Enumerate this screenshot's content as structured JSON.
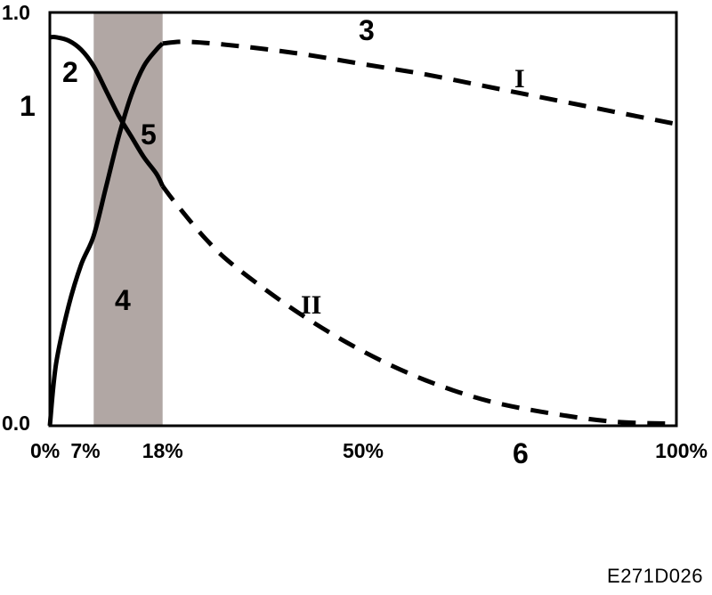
{
  "chart_data": {
    "type": "line",
    "x_ticks": [
      "0%",
      "7%",
      "18%",
      "50%",
      "100%"
    ],
    "x_tick_values": [
      0,
      7,
      18,
      50,
      100
    ],
    "y_ticks": [
      "0.0",
      "1.0"
    ],
    "y_tick_values": [
      0.0,
      1.0
    ],
    "xlim": [
      0,
      100
    ],
    "ylim": [
      0,
      1
    ],
    "grid": false,
    "shaded_band": {
      "x_start": 7,
      "x_end": 18,
      "color": "#b1a7a4"
    },
    "series": [
      {
        "name": "I",
        "solid_points": [
          [
            0,
            0.0
          ],
          [
            1,
            0.15
          ],
          [
            3,
            0.29
          ],
          [
            5,
            0.39
          ],
          [
            7,
            0.46
          ],
          [
            9,
            0.58
          ],
          [
            11,
            0.7
          ],
          [
            13,
            0.8
          ],
          [
            15,
            0.87
          ],
          [
            17,
            0.91
          ],
          [
            18,
            0.925
          ]
        ],
        "dashed_points": [
          [
            18,
            0.925
          ],
          [
            22,
            0.929
          ],
          [
            30,
            0.919
          ],
          [
            40,
            0.9
          ],
          [
            50,
            0.875
          ],
          [
            60,
            0.85
          ],
          [
            70,
            0.82
          ],
          [
            80,
            0.79
          ],
          [
            90,
            0.76
          ],
          [
            100,
            0.73
          ]
        ]
      },
      {
        "name": "II",
        "solid_points": [
          [
            0,
            0.94
          ],
          [
            1,
            0.94
          ],
          [
            3,
            0.932
          ],
          [
            5,
            0.91
          ],
          [
            7,
            0.87
          ],
          [
            9,
            0.81
          ],
          [
            11,
            0.75
          ],
          [
            13,
            0.7
          ],
          [
            15,
            0.65
          ],
          [
            17,
            0.61
          ],
          [
            18,
            0.58
          ]
        ],
        "dashed_points": [
          [
            18,
            0.58
          ],
          [
            20,
            0.54
          ],
          [
            25,
            0.45
          ],
          [
            30,
            0.38
          ],
          [
            40,
            0.27
          ],
          [
            50,
            0.18
          ],
          [
            60,
            0.11
          ],
          [
            70,
            0.06
          ],
          [
            80,
            0.03
          ],
          [
            90,
            0.01
          ],
          [
            100,
            0.005
          ]
        ]
      }
    ],
    "annotations": [
      "1",
      "2",
      "3",
      "4",
      "5",
      "6",
      "I",
      "II"
    ],
    "figure_code": "E271D026"
  }
}
